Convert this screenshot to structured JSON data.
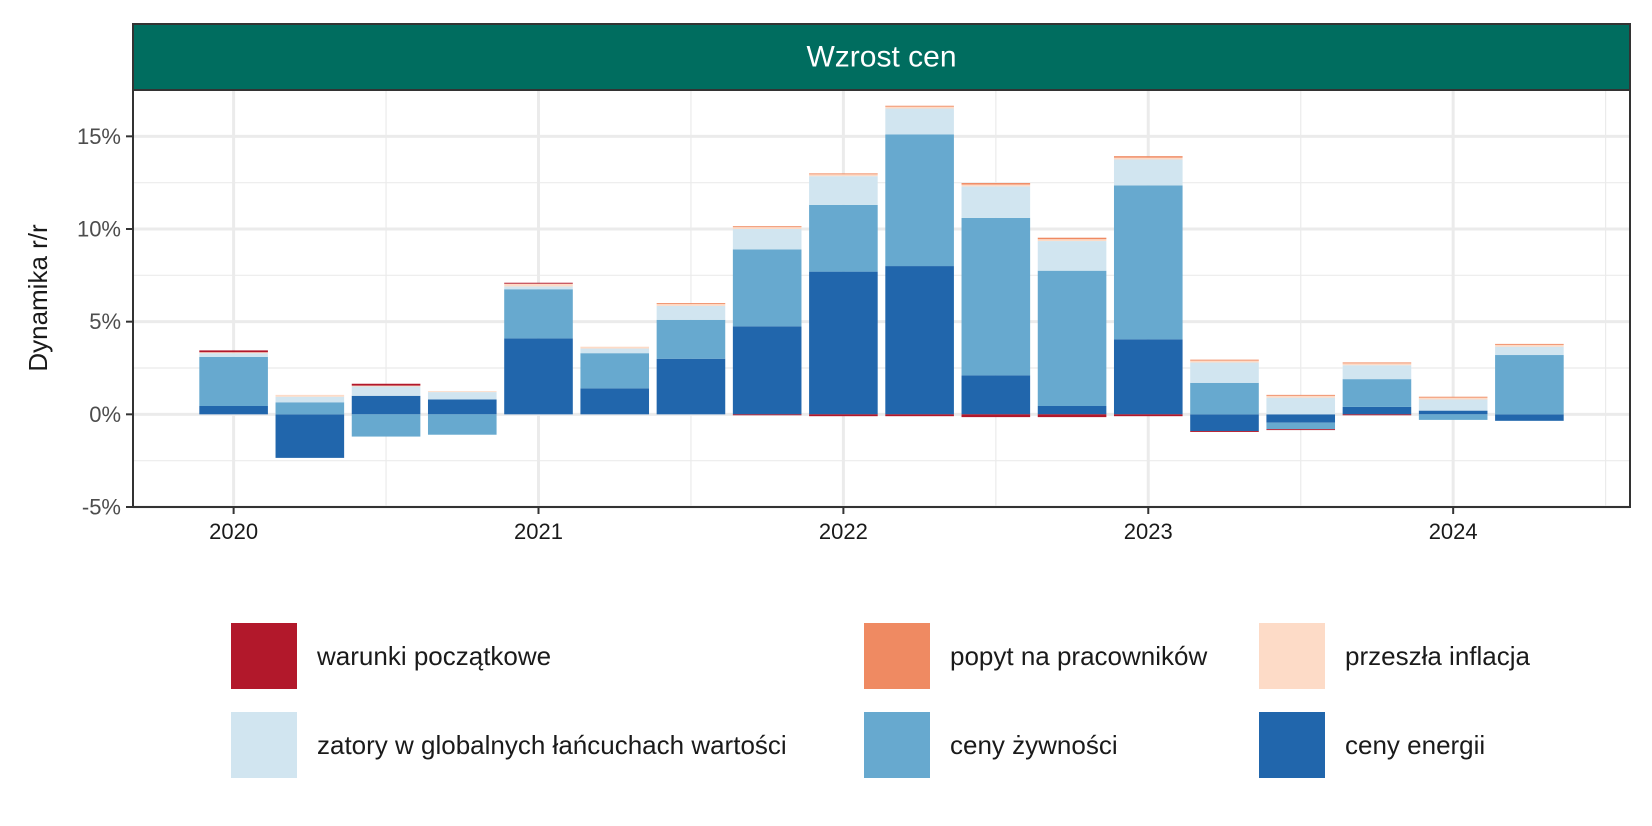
{
  "chart_data": {
    "type": "bar",
    "stacked": true,
    "title": "Wzrost cen",
    "ylabel": "Dynamika r/r",
    "xlabel": "",
    "ylim": [
      -5,
      17.5
    ],
    "y_ticks": [
      -5,
      0,
      5,
      10,
      15
    ],
    "y_tick_labels": [
      "-5%",
      "0%",
      "5%",
      "10%",
      "15%"
    ],
    "x_ticks": [
      2020,
      2021,
      2022,
      2023,
      2024
    ],
    "x_tick_labels": [
      "2020",
      "2021",
      "2022",
      "2023",
      "2024"
    ],
    "xlim": [
      2019.67,
      2024.58
    ],
    "grid": true,
    "legend_position": "bottom",
    "categories": [
      "2020Q1",
      "2020Q2",
      "2020Q3",
      "2020Q4",
      "2021Q1",
      "2021Q2",
      "2021Q3",
      "2021Q4",
      "2022Q1",
      "2022Q2",
      "2022Q3",
      "2022Q4",
      "2023Q1",
      "2023Q2",
      "2023Q3",
      "2023Q4",
      "2024Q1",
      "2024Q2"
    ],
    "x": [
      2020.0,
      2020.25,
      2020.5,
      2020.75,
      2021.0,
      2021.25,
      2021.5,
      2021.75,
      2022.0,
      2022.25,
      2022.5,
      2022.75,
      2023.0,
      2023.25,
      2023.5,
      2023.75,
      2024.0,
      2024.25
    ],
    "series": [
      {
        "name": "ceny energii",
        "color": "#2166AC",
        "values": [
          0.45,
          -2.35,
          1.0,
          0.8,
          4.1,
          1.4,
          3.0,
          4.75,
          7.7,
          8.0,
          2.1,
          0.45,
          4.05,
          -0.9,
          -0.45,
          0.4,
          0.2,
          -0.35
        ]
      },
      {
        "name": "ceny żywności",
        "color": "#67A9CF",
        "values": [
          2.65,
          0.65,
          -1.2,
          -1.1,
          2.65,
          1.9,
          2.1,
          4.15,
          3.6,
          7.1,
          8.5,
          7.3,
          8.3,
          1.7,
          -0.35,
          1.5,
          -0.3,
          3.2
        ]
      },
      {
        "name": "zatory w globalnych łańcuchach wartości",
        "color": "#D1E5F0",
        "values": [
          0.2,
          0.3,
          0.5,
          0.4,
          0.15,
          0.25,
          0.75,
          1.1,
          1.55,
          1.4,
          1.7,
          1.6,
          1.4,
          1.1,
          0.9,
          0.75,
          0.6,
          0.45
        ]
      },
      {
        "name": "przeszła inflacja",
        "color": "#FDDBC7",
        "values": [
          0.05,
          0.1,
          0.05,
          0.05,
          0.15,
          0.1,
          0.1,
          0.1,
          0.1,
          0.1,
          0.1,
          0.1,
          0.1,
          0.1,
          0.1,
          0.1,
          0.1,
          0.1
        ]
      },
      {
        "name": "popyt na pracowników",
        "color": "#EF8A62",
        "values": [
          0.0,
          0.0,
          0.0,
          0.0,
          0.0,
          0.0,
          0.05,
          0.05,
          0.05,
          0.05,
          0.08,
          0.08,
          0.08,
          0.05,
          0.05,
          0.05,
          0.05,
          0.05
        ]
      },
      {
        "name": "warunki początkowe",
        "color": "#B2182B",
        "values": [
          0.1,
          0.0,
          0.1,
          0.0,
          0.05,
          0.0,
          0.0,
          -0.05,
          -0.1,
          -0.1,
          -0.15,
          -0.15,
          -0.1,
          -0.05,
          -0.05,
          -0.05,
          0.0,
          0.0
        ]
      }
    ]
  },
  "panel": {
    "strip_color": "#006D5F",
    "strip_text_color": "#ffffff"
  },
  "legend": {
    "items": [
      {
        "label": "warunki początkowe",
        "color": "#B2182B"
      },
      {
        "label": "popyt na pracowników",
        "color": "#EF8A62"
      },
      {
        "label": "przeszła inflacja",
        "color": "#FDDBC7"
      },
      {
        "label": "zatory w globalnych łańcuchach wartości",
        "color": "#D1E5F0"
      },
      {
        "label": "ceny żywności",
        "color": "#67A9CF"
      },
      {
        "label": "ceny energii",
        "color": "#2166AC"
      }
    ]
  }
}
